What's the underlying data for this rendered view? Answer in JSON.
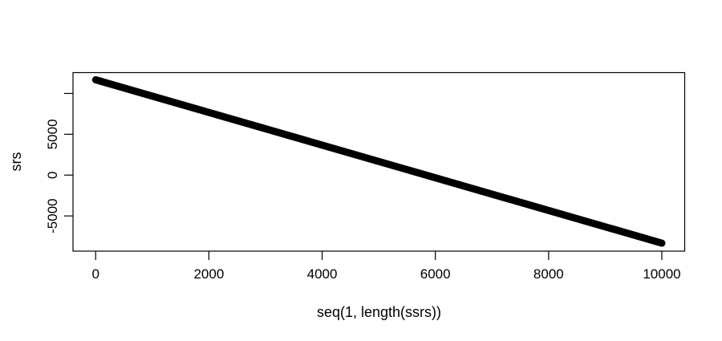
{
  "chart_data": {
    "type": "scatter",
    "title": "",
    "xlabel": "seq(1, length(ssrs))",
    "ylabel": "srs",
    "series": [
      {
        "name": "srs",
        "n_points": 10000,
        "appearance": "dense overlapping black points forming one thick straight descending line",
        "x": [
          1,
          10000
        ],
        "y": [
          11670,
          -8330
        ]
      }
    ],
    "xlim": [
      -400,
      10404
    ],
    "ylim": [
      -9310,
      12550
    ],
    "x_ticks": [
      0,
      2000,
      4000,
      6000,
      8000,
      10000
    ],
    "x_tick_labels": [
      "0",
      "2000",
      "4000",
      "6000",
      "8000",
      "10000"
    ],
    "y_ticks": [
      -5000,
      0,
      5000,
      10000
    ],
    "y_tick_labels": [
      "-5000",
      "0",
      "5000",
      ""
    ],
    "grid": false,
    "legend_position": "none",
    "point_color": "#000000",
    "axis_color": "#000000",
    "background_color": "#ffffff"
  }
}
